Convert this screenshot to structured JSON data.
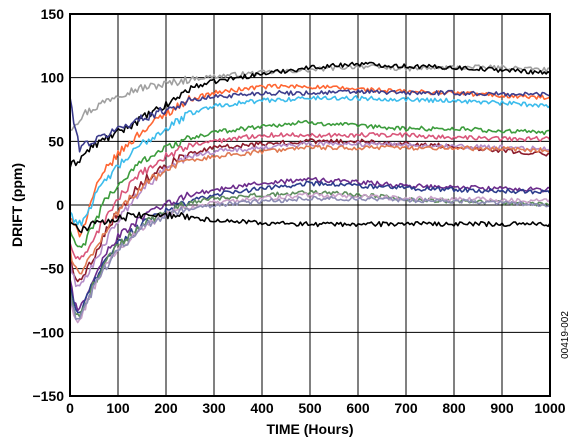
{
  "chart_data": {
    "type": "line",
    "xlabel": "TIME (Hours)",
    "ylabel": "DRIFT (ppm)",
    "xlim": [
      0,
      1000
    ],
    "ylim": [
      -150,
      150
    ],
    "x_ticks": [
      "0",
      "100",
      "200",
      "300",
      "400",
      "500",
      "600",
      "700",
      "800",
      "900",
      "1000"
    ],
    "y_ticks": [
      "150",
      "100",
      "50",
      "0",
      "−50",
      "−100",
      "−150"
    ],
    "grid": true,
    "legend": "none",
    "figure_code": "00419-002",
    "x": [
      0,
      10,
      20,
      30,
      50,
      75,
      100,
      150,
      200,
      250,
      300,
      400,
      500,
      600,
      700,
      800,
      900,
      1000
    ],
    "series": [
      {
        "color": "#a0a0a0",
        "values": [
          60,
          64,
          68,
          72,
          76,
          82,
          87,
          92,
          95,
          99,
          101,
          104,
          106,
          109,
          107,
          108,
          108,
          106
        ]
      },
      {
        "color": "#000000",
        "values": [
          30,
          33,
          36,
          40,
          47,
          52,
          57,
          68,
          78,
          92,
          97,
          103,
          108,
          111,
          109,
          108,
          106,
          104
        ]
      },
      {
        "color": "#ff6633",
        "values": [
          -10,
          -18,
          -22,
          -15,
          10,
          28,
          40,
          58,
          72,
          83,
          88,
          93,
          93,
          91,
          89,
          88,
          86,
          84
        ]
      },
      {
        "color": "#3c3c8c",
        "values": [
          85,
          60,
          45,
          48,
          50,
          55,
          60,
          68,
          75,
          82,
          85,
          88,
          88,
          89,
          88,
          88,
          87,
          87
        ]
      },
      {
        "color": "#3cbcec",
        "values": [
          -5,
          -12,
          -15,
          -10,
          5,
          20,
          30,
          48,
          60,
          72,
          78,
          82,
          84,
          84,
          83,
          82,
          80,
          78
        ]
      },
      {
        "color": "#3c9c3c",
        "values": [
          -20,
          -30,
          -35,
          -30,
          -15,
          5,
          15,
          35,
          45,
          52,
          57,
          62,
          65,
          62,
          60,
          60,
          58,
          57
        ]
      },
      {
        "color": "#d9567a",
        "values": [
          -30,
          -40,
          -45,
          -40,
          -25,
          -10,
          5,
          25,
          38,
          47,
          50,
          55,
          55,
          55,
          55,
          53,
          52,
          52
        ]
      },
      {
        "color": "#8c1c2c",
        "values": [
          -40,
          -55,
          -60,
          -55,
          -40,
          -20,
          -5,
          18,
          32,
          40,
          45,
          48,
          50,
          50,
          48,
          46,
          43,
          40
        ]
      },
      {
        "color": "#b48cc8",
        "values": [
          -45,
          -60,
          -65,
          -60,
          -45,
          -28,
          -12,
          12,
          28,
          38,
          42,
          45,
          48,
          48,
          47,
          46,
          45,
          44
        ]
      },
      {
        "color": "#e07a52",
        "values": [
          -35,
          -50,
          -55,
          -50,
          -35,
          -20,
          -5,
          15,
          28,
          35,
          38,
          42,
          45,
          45,
          45,
          45,
          44,
          43
        ]
      },
      {
        "color": "#6c2c8c",
        "values": [
          -60,
          -78,
          -82,
          -75,
          -55,
          -38,
          -25,
          -10,
          0,
          8,
          12,
          17,
          20,
          18,
          15,
          14,
          13,
          12
        ]
      },
      {
        "color": "#2c3c8c",
        "values": [
          -65,
          -82,
          -85,
          -78,
          -60,
          -42,
          -30,
          -15,
          -5,
          3,
          8,
          13,
          17,
          15,
          13,
          12,
          11,
          10
        ]
      },
      {
        "color": "#5c8c5c",
        "values": [
          -70,
          -85,
          -88,
          -80,
          -62,
          -45,
          -32,
          -15,
          -5,
          2,
          5,
          8,
          10,
          8,
          5,
          3,
          2,
          0
        ]
      },
      {
        "color": "#c8a0c8",
        "values": [
          -75,
          -88,
          -90,
          -82,
          -65,
          -48,
          -35,
          -18,
          -8,
          -2,
          2,
          5,
          8,
          7,
          5,
          5,
          4,
          3
        ]
      },
      {
        "color": "#8c8cb4",
        "values": [
          -72,
          -87,
          -89,
          -82,
          -65,
          -48,
          -35,
          -18,
          -8,
          -3,
          0,
          3,
          5,
          5,
          4,
          3,
          2,
          0
        ]
      },
      {
        "color": "#000000",
        "values": [
          -10,
          -18,
          -20,
          -18,
          -15,
          -12,
          -10,
          -8,
          -8,
          -10,
          -12,
          -14,
          -15,
          -15,
          -15,
          -15,
          -15,
          -15
        ]
      }
    ]
  }
}
